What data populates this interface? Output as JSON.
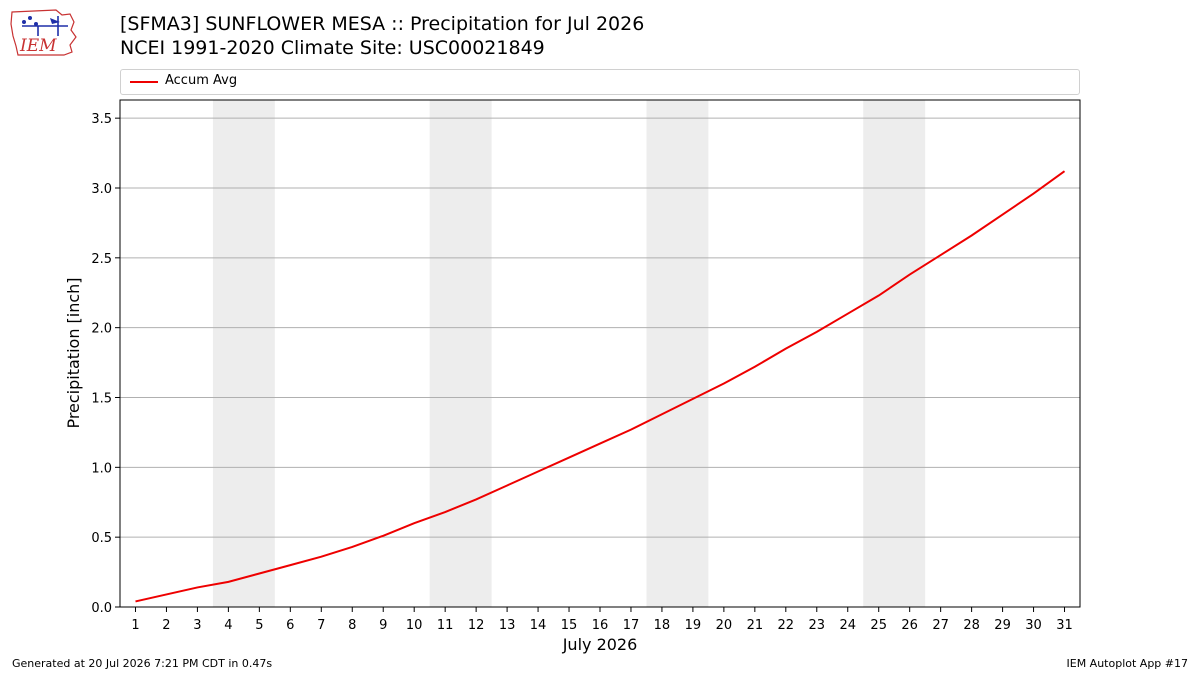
{
  "header": {
    "title_line1": "[SFMA3] SUNFLOWER MESA :: Precipitation for Jul 2026",
    "title_line2": "NCEI 1991-2020 Climate Site: USC00021849",
    "logo_text": "IEM"
  },
  "legend": {
    "label": "Accum Avg",
    "color": "#ee0000",
    "placement": "top, above plot"
  },
  "footer": {
    "generated": "Generated at 20 Jul 2026 7:21 PM CDT in 0.47s",
    "app": "IEM Autoplot App #17"
  },
  "chart_data": {
    "type": "line",
    "title": "[SFMA3] SUNFLOWER MESA :: Precipitation for Jul 2026",
    "subtitle": "NCEI 1991-2020 Climate Site: USC00021849",
    "xlabel": "July 2026",
    "ylabel": "Precipitation [inch]",
    "x": [
      1,
      2,
      3,
      4,
      5,
      6,
      7,
      8,
      9,
      10,
      11,
      12,
      13,
      14,
      15,
      16,
      17,
      18,
      19,
      20,
      21,
      22,
      23,
      24,
      25,
      26,
      27,
      28,
      29,
      30,
      31
    ],
    "xlim": [
      0.5,
      31.5
    ],
    "ylim": [
      0,
      3.63
    ],
    "yticks": [
      0.0,
      0.5,
      1.0,
      1.5,
      2.0,
      2.5,
      3.0,
      3.5
    ],
    "ytick_labels": [
      "0.0",
      "0.5",
      "1.0",
      "1.5",
      "2.0",
      "2.5",
      "3.0",
      "3.5"
    ],
    "grid": "horizontal",
    "weekend_shading": [
      [
        3.5,
        5.5
      ],
      [
        10.5,
        12.5
      ],
      [
        17.5,
        19.5
      ],
      [
        24.5,
        26.5
      ]
    ],
    "shading_color": "#ededed",
    "series": [
      {
        "name": "Accum Avg",
        "color": "#ee0000",
        "values": [
          0.04,
          0.09,
          0.14,
          0.18,
          0.24,
          0.3,
          0.36,
          0.43,
          0.51,
          0.6,
          0.68,
          0.77,
          0.87,
          0.97,
          1.07,
          1.17,
          1.27,
          1.38,
          1.49,
          1.6,
          1.72,
          1.85,
          1.97,
          2.1,
          2.23,
          2.38,
          2.52,
          2.66,
          2.81,
          2.96,
          3.12
        ]
      }
    ]
  }
}
